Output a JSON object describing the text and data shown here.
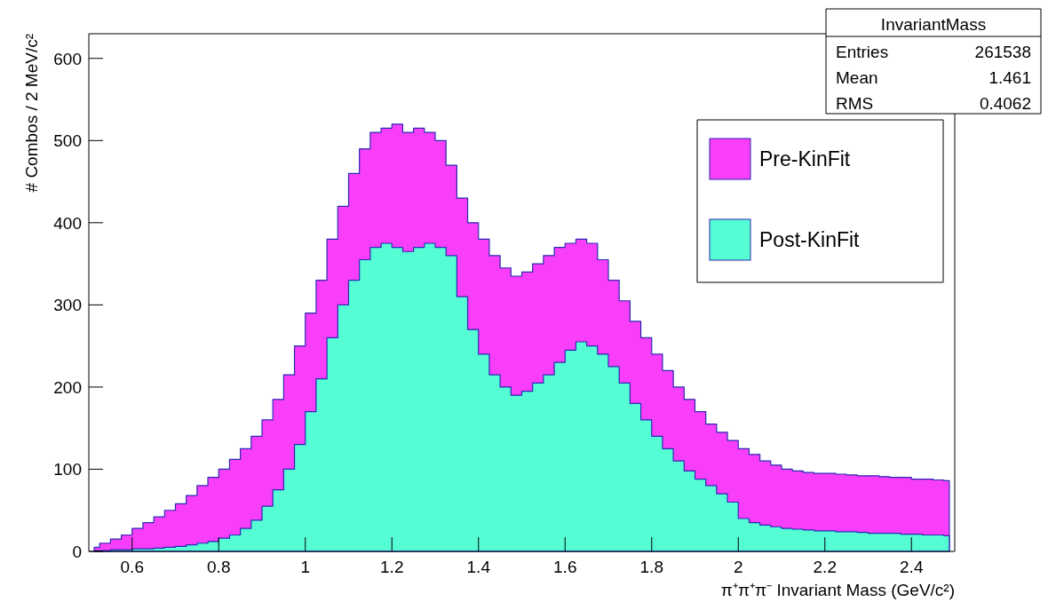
{
  "chart_data": {
    "type": "area",
    "xlabel": "π⁺π⁺π⁻ Invariant Mass (GeV/c²)",
    "ylabel": "# Combos / 2 MeV/c²",
    "x": [
      0.5125,
      0.5375,
      0.5625,
      0.5875,
      0.6125,
      0.6375,
      0.6625,
      0.6875,
      0.7125,
      0.7375,
      0.7625,
      0.7875,
      0.8125,
      0.8375,
      0.8625,
      0.8875,
      0.9125,
      0.9375,
      0.9625,
      0.9875,
      1.0125,
      1.0375,
      1.0625,
      1.0875,
      1.1125,
      1.1375,
      1.1625,
      1.1875,
      1.2125,
      1.2375,
      1.2625,
      1.2875,
      1.3125,
      1.3375,
      1.3625,
      1.3875,
      1.4125,
      1.4375,
      1.4625,
      1.4875,
      1.5125,
      1.5375,
      1.5625,
      1.5875,
      1.6125,
      1.6375,
      1.6625,
      1.6875,
      1.7125,
      1.7375,
      1.7625,
      1.7875,
      1.8125,
      1.8375,
      1.8625,
      1.8875,
      1.9125,
      1.9375,
      1.9625,
      1.9875,
      2.0125,
      2.0375,
      2.0625,
      2.0875,
      2.1125,
      2.1375,
      2.1625,
      2.1875,
      2.2125,
      2.2375,
      2.2625,
      2.2875,
      2.3125,
      2.3375,
      2.3625,
      2.3875,
      2.4125,
      2.4375,
      2.4625,
      2.4875
    ],
    "series": [
      {
        "name": "Pre-KinFit",
        "color": "#f93ef9",
        "values": [
          5,
          10,
          15,
          20,
          28,
          35,
          42,
          50,
          58,
          68,
          80,
          90,
          100,
          112,
          125,
          140,
          160,
          185,
          215,
          250,
          290,
          330,
          380,
          420,
          460,
          490,
          510,
          515,
          520,
          510,
          515,
          510,
          500,
          470,
          430,
          400,
          380,
          360,
          345,
          335,
          340,
          350,
          360,
          370,
          375,
          380,
          375,
          355,
          330,
          305,
          280,
          260,
          240,
          220,
          200,
          185,
          170,
          155,
          145,
          135,
          125,
          118,
          110,
          105,
          100,
          98,
          96,
          95,
          95,
          94,
          93,
          92,
          92,
          91,
          90,
          90,
          88,
          88,
          87,
          86
        ]
      },
      {
        "name": "Post-KinFit",
        "color": "#55fdd5",
        "values": [
          1,
          1,
          2,
          2,
          3,
          3,
          4,
          5,
          6,
          8,
          10,
          12,
          16,
          20,
          28,
          38,
          55,
          75,
          100,
          130,
          170,
          210,
          260,
          300,
          330,
          355,
          370,
          375,
          370,
          365,
          370,
          375,
          370,
          360,
          310,
          270,
          240,
          215,
          200,
          190,
          195,
          205,
          215,
          230,
          245,
          255,
          250,
          240,
          225,
          205,
          180,
          160,
          140,
          125,
          110,
          98,
          88,
          80,
          70,
          60,
          40,
          35,
          32,
          30,
          28,
          27,
          26,
          25,
          25,
          24,
          24,
          23,
          22,
          22,
          22,
          21,
          21,
          20,
          20,
          19
        ]
      }
    ],
    "xlim": [
      0.5,
      2.5
    ],
    "xticks": [
      {
        "value": 0.6,
        "label": "0.6"
      },
      {
        "value": 0.8,
        "label": "0.8"
      },
      1,
      {
        "value": 1.2,
        "label": "1.2"
      },
      {
        "value": 1.4,
        "label": "1.4"
      },
      {
        "value": 1.6,
        "label": "1.6"
      },
      {
        "value": 1.8,
        "label": "1.8"
      },
      2,
      {
        "value": 2.2,
        "label": "2.2"
      },
      {
        "value": 2.4,
        "label": "2.4"
      }
    ],
    "ylim": [
      0,
      630
    ],
    "yticks": [
      0,
      100,
      200,
      300,
      400,
      500,
      600
    ],
    "legend": "top right",
    "annotations": [
      "InvariantMass",
      "Entries",
      "261538",
      "Mean",
      "1.461",
      "RMS",
      "0.4062"
    ]
  }
}
